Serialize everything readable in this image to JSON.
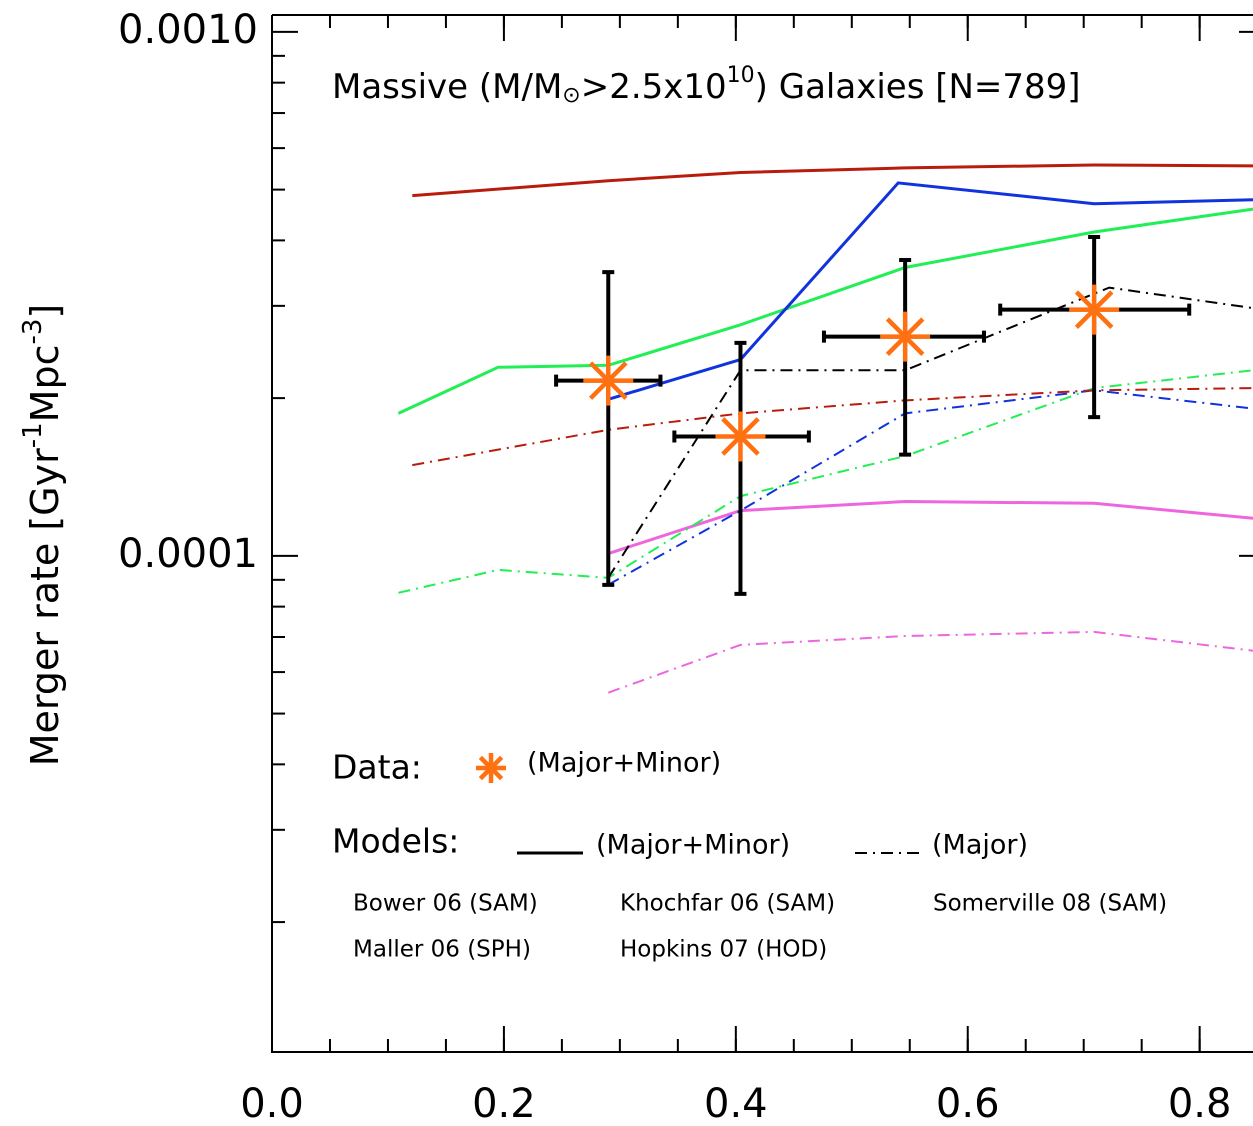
{
  "chart_data": {
    "type": "line",
    "title_parts": [
      "Massive (M/M",
      "⊙",
      ">2.5x10",
      "10",
      ") Galaxies [N=789]"
    ],
    "y_label_parts": [
      "Merger rate [Gyr",
      "-1",
      "Mpc",
      "-3",
      "]"
    ],
    "log_y": true,
    "xlim": [
      0,
      0.846
    ],
    "ylim": [
      1.13e-05,
      0.001077
    ],
    "xticks": [
      {
        "value": 0,
        "label": "0.0"
      },
      0.2,
      0.4,
      0.6,
      0.8
    ],
    "yticks": [
      {
        "value": 0.0001,
        "label": "0.0001"
      },
      {
        "value": 0.001,
        "label": "0.0010"
      }
    ],
    "data": {
      "color": "#ff7010",
      "x": [
        0.29,
        0.404,
        0.546,
        0.709
      ],
      "values": [
        0.000216,
        0.000169,
        0.000262,
        0.000295
      ],
      "x_low": [
        0.245,
        0.347,
        0.476,
        0.628
      ],
      "x_high": [
        0.335,
        0.463,
        0.614,
        0.791
      ],
      "y_low": [
        8.8e-05,
        8.46e-05,
        0.000156,
        0.000184
      ],
      "y_high": [
        0.000348,
        0.000255,
        0.000367,
        0.000406
      ]
    },
    "legend": {
      "data_label": "Data:",
      "data_desc": "(Major+Minor)",
      "models_label": "Models:",
      "solid_desc": "(Major+Minor)",
      "dashdot_desc": "(Major)"
    },
    "models": [
      {
        "name": "Bower 06 (SAM)",
        "color": "#ee66dd",
        "solid": {
          "x": [
            0.29,
            0.404,
            0.546,
            0.709,
            0.846
          ],
          "values": [
            0.000101,
            0.000122,
            0.000127,
            0.000126,
            0.000118
          ]
        },
        "dashdot": {
          "x": [
            0.29,
            0.404,
            0.546,
            0.709,
            0.846
          ],
          "values": [
            5.48e-05,
            6.76e-05,
            7.03e-05,
            7.16e-05,
            6.59e-05
          ]
        }
      },
      {
        "name": "Khochfar 06 (SAM)",
        "color": "#22ee55",
        "solid": {
          "x": [
            0.109,
            0.195,
            0.29,
            0.404,
            0.546,
            0.709,
            0.846
          ],
          "values": [
            0.000187,
            0.000229,
            0.000231,
            0.000276,
            0.000355,
            0.000415,
            0.000459
          ]
        },
        "dashdot": {
          "x": [
            0.109,
            0.195,
            0.29,
            0.404,
            0.546,
            0.709,
            0.846
          ],
          "values": [
            8.5e-05,
            9.4e-05,
            9.08e-05,
            0.00013,
            0.000155,
            0.000209,
            0.000226
          ]
        }
      },
      {
        "name": "Somerville 08 (SAM)",
        "color": "#1133dd",
        "solid": {
          "x": [
            0.29,
            0.404,
            0.54,
            0.709,
            0.846
          ],
          "values": [
            0.000199,
            0.000237,
            0.000515,
            0.00047,
            0.000478
          ]
        },
        "dashdot": {
          "x": [
            0.29,
            0.404,
            0.546,
            0.709,
            0.846
          ],
          "values": [
            8.81e-05,
            0.000122,
            0.000187,
            0.000207,
            0.000191
          ]
        }
      },
      {
        "name": "Maller 06 (SPH)",
        "color": "#000000",
        "dashdot": {
          "x": [
            0.29,
            0.404,
            0.546,
            0.722,
            0.846
          ],
          "values": [
            9.08e-05,
            0.000226,
            0.000226,
            0.000325,
            0.000297
          ]
        }
      },
      {
        "name": "Hopkins 07 (HOD)",
        "color": "#b81c0c",
        "solid": {
          "x": [
            0.121,
            0.29,
            0.404,
            0.546,
            0.709,
            0.846
          ],
          "values": [
            0.000487,
            0.00052,
            0.000539,
            0.00055,
            0.000557,
            0.000555
          ]
        },
        "dashdot": {
          "x": [
            0.121,
            0.29,
            0.404,
            0.546,
            0.709,
            0.846
          ],
          "values": [
            0.000149,
            0.000174,
            0.000187,
            0.000198,
            0.000207,
            0.000209
          ]
        }
      }
    ]
  }
}
